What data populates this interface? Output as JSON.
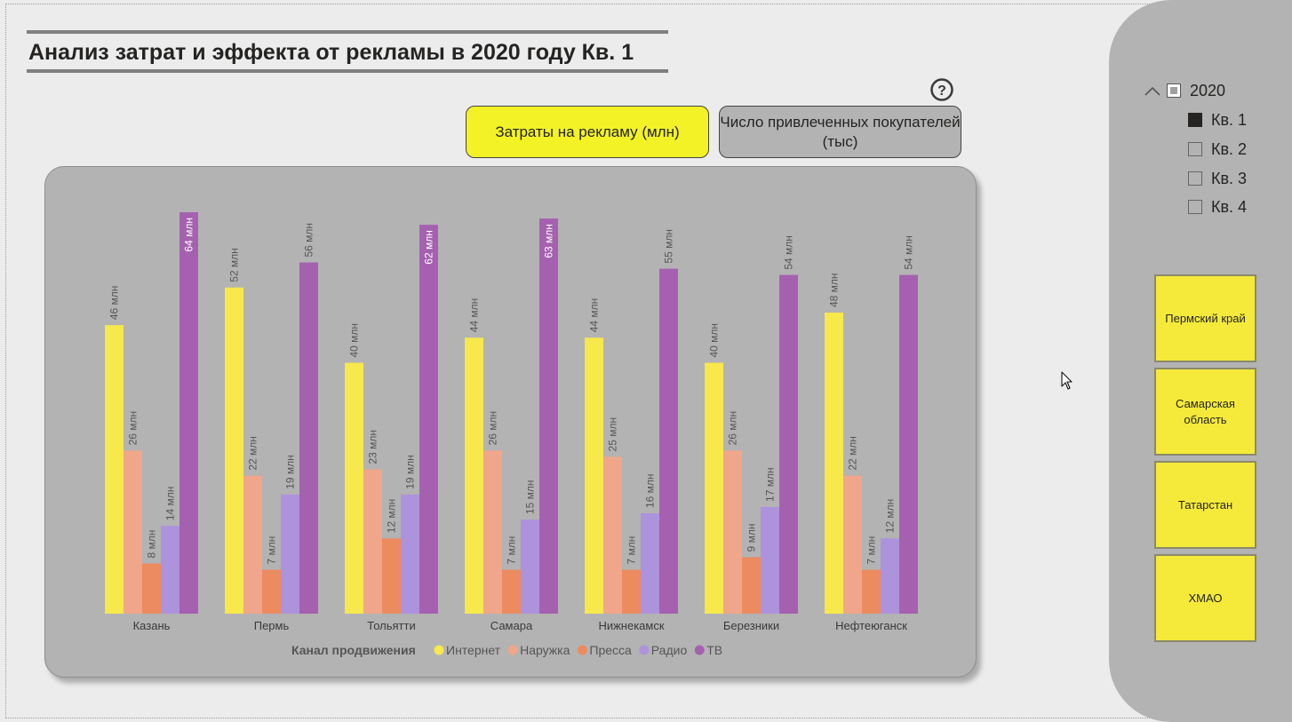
{
  "title": "Анализ затрат и эффекта от рекламы в 2020 году Кв. 1",
  "buttons": {
    "costs": "Затраты на рекламу (млн)",
    "customers": "Число привлеченных покупателей (тыс)"
  },
  "help_icon": "question-circle-icon",
  "filters": {
    "year": "2020",
    "quarters": [
      {
        "label": "Кв. 1",
        "checked": true
      },
      {
        "label": "Кв. 2",
        "checked": false
      },
      {
        "label": "Кв. 3",
        "checked": false
      },
      {
        "label": "Кв. 4",
        "checked": false
      }
    ],
    "regions": [
      "Пермский край",
      "Самарская область",
      "Татарстан",
      "ХМАО"
    ]
  },
  "colors": {
    "background": "#ececec",
    "panel": "#b3b3b3",
    "active_button": "#f2f226",
    "region_button": "#f5ea3a"
  },
  "chart_data": {
    "type": "bar",
    "title": "",
    "xlabel": "",
    "ylabel": "",
    "ylim": [
      0,
      64
    ],
    "unit_suffix": " млн",
    "legend_title": "Канал продвижения",
    "categories": [
      "Казань",
      "Пермь",
      "Тольятти",
      "Самара",
      "Нижнекамск",
      "Березники",
      "Нефтеюганск"
    ],
    "series": [
      {
        "name": "Интернет",
        "color": "#f7e84b",
        "values": [
          46,
          52,
          40,
          44,
          44,
          40,
          48
        ]
      },
      {
        "name": "Наружка",
        "color": "#f0a68a",
        "values": [
          26,
          22,
          23,
          26,
          25,
          26,
          22
        ]
      },
      {
        "name": "Пресса",
        "color": "#ec8a60",
        "values": [
          8,
          7,
          12,
          7,
          7,
          9,
          7
        ]
      },
      {
        "name": "Радио",
        "color": "#ad92dc",
        "values": [
          14,
          19,
          19,
          15,
          16,
          17,
          12
        ]
      },
      {
        "name": "ТВ",
        "color": "#a561b0",
        "values": [
          64,
          56,
          62,
          63,
          55,
          54,
          54
        ]
      }
    ]
  }
}
